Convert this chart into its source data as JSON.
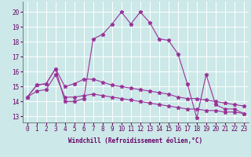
{
  "xlabel": "Windchill (Refroidissement éolien,°C)",
  "x_ticks": [
    0,
    1,
    2,
    3,
    4,
    5,
    6,
    7,
    8,
    9,
    10,
    11,
    12,
    13,
    14,
    15,
    16,
    17,
    18,
    19,
    20,
    21,
    22,
    23
  ],
  "ylim": [
    12.6,
    20.7
  ],
  "xlim": [
    -0.5,
    23.5
  ],
  "yticks": [
    13,
    14,
    15,
    16,
    17,
    18,
    19,
    20
  ],
  "background_color": "#cce8e8",
  "grid_color": "#b0d8d8",
  "line_color": "#993399",
  "series1_x": [
    0,
    1,
    2,
    3,
    4,
    5,
    6,
    7,
    8,
    9,
    10,
    11,
    12,
    13,
    14,
    15,
    16,
    17,
    18,
    19,
    20,
    21,
    22,
    23
  ],
  "series1_y": [
    14.3,
    15.1,
    15.2,
    16.2,
    14.0,
    14.0,
    14.2,
    18.2,
    18.5,
    19.2,
    20.0,
    19.2,
    20.0,
    19.3,
    18.2,
    18.1,
    17.2,
    15.2,
    12.9,
    15.8,
    13.8,
    13.5,
    13.5,
    13.2
  ],
  "series2_x": [
    0,
    1,
    2,
    3,
    4,
    5,
    6,
    7,
    8,
    9,
    10,
    11,
    12,
    13,
    14,
    15,
    16,
    17,
    18,
    19,
    20,
    21,
    22,
    23
  ],
  "series2_y": [
    14.3,
    15.1,
    15.2,
    16.2,
    15.0,
    15.2,
    15.5,
    15.5,
    15.3,
    15.1,
    15.0,
    14.9,
    14.8,
    14.7,
    14.6,
    14.5,
    14.3,
    14.2,
    14.2,
    14.1,
    14.0,
    13.9,
    13.8,
    13.7
  ],
  "series3_x": [
    0,
    1,
    2,
    3,
    4,
    5,
    6,
    7,
    8,
    9,
    10,
    11,
    12,
    13,
    14,
    15,
    16,
    17,
    18,
    19,
    20,
    21,
    22,
    23
  ],
  "series3_y": [
    14.3,
    14.7,
    14.8,
    15.8,
    14.3,
    14.3,
    14.4,
    14.5,
    14.4,
    14.3,
    14.2,
    14.1,
    14.0,
    13.9,
    13.8,
    13.7,
    13.6,
    13.5,
    13.5,
    13.4,
    13.4,
    13.3,
    13.3,
    13.2
  ],
  "tick_fontsize": 5.5,
  "xlabel_fontsize": 5.5
}
